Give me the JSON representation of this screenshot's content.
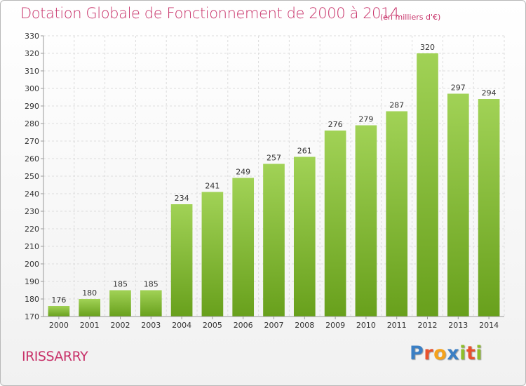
{
  "header": {
    "title": "Dotation Globale de Fonctionnement de 2000 à 2014",
    "subtitle": "(en milliers d'€)"
  },
  "commune": "IRISSARRY",
  "logo": {
    "text": "Proxiti",
    "colors": [
      "#3b7fc4",
      "#e8512c",
      "#f5a21b",
      "#3b7fc4",
      "#8fbe2a",
      "#e8512c",
      "#8fbe2a"
    ]
  },
  "colors": {
    "bar_light": "#a1d256",
    "bar_dark": "#68a01c",
    "grid": "#dddddd",
    "axis": "#999999",
    "title": "#c8336a"
  },
  "chart_data": {
    "type": "bar",
    "categories": [
      "2000",
      "2001",
      "2002",
      "2003",
      "2004",
      "2005",
      "2006",
      "2007",
      "2008",
      "2009",
      "2010",
      "2011",
      "2012",
      "2013",
      "2014"
    ],
    "values": [
      176,
      180,
      185,
      185,
      234,
      241,
      249,
      257,
      261,
      276,
      279,
      287,
      320,
      297,
      294
    ],
    "title": "Dotation Globale de Fonctionnement de 2000 à 2014",
    "subtitle": "(en milliers d'€)",
    "xlabel": "",
    "ylabel": "",
    "ylim": [
      170,
      330
    ],
    "yticks": [
      170,
      180,
      190,
      200,
      210,
      220,
      230,
      240,
      250,
      260,
      270,
      280,
      290,
      300,
      310,
      320,
      330
    ],
    "grid": true,
    "legend": "none"
  }
}
